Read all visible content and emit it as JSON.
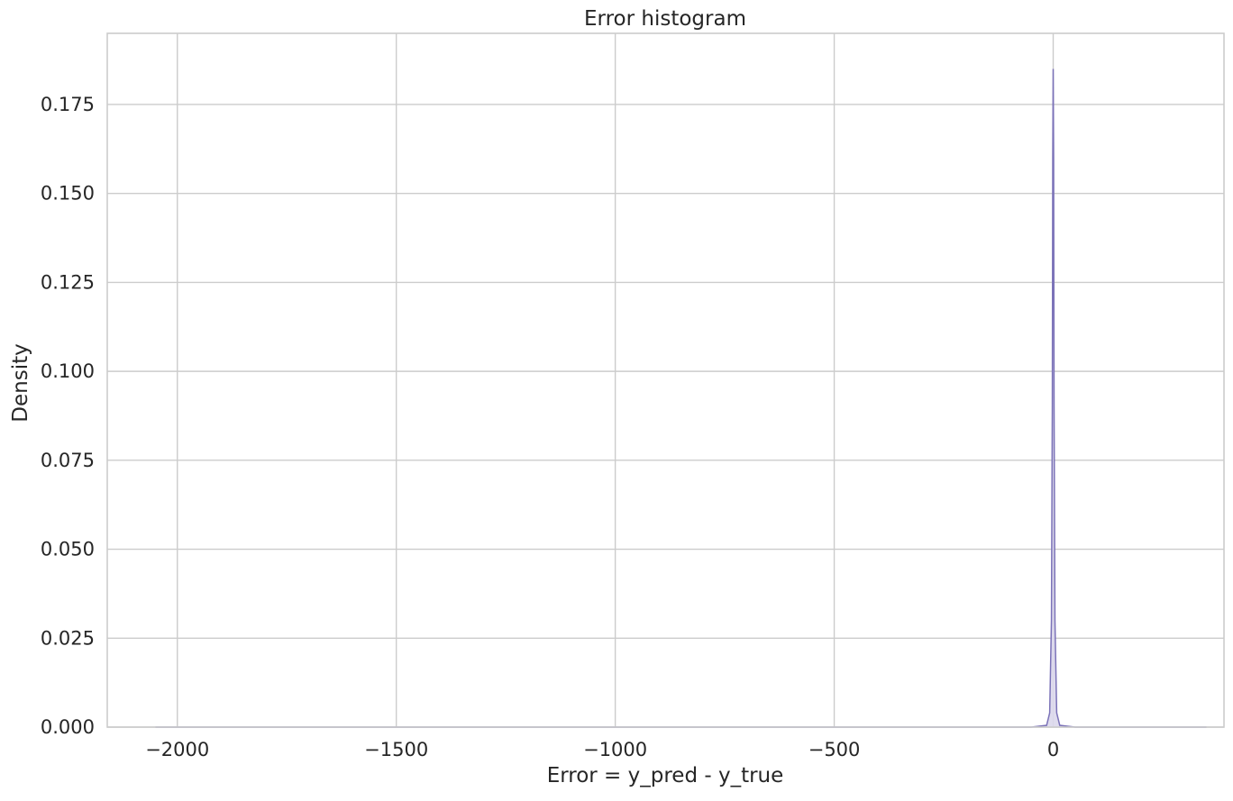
{
  "chart_data": {
    "type": "area",
    "title": "Error histogram",
    "xlabel": "Error = y_pred - y_true",
    "ylabel": "Density",
    "xlim": [
      -2160,
      390
    ],
    "ylim": [
      0,
      0.195
    ],
    "x_ticks": [
      -2000,
      -1500,
      -1000,
      -500,
      0
    ],
    "x_tick_labels": [
      "−2000",
      "−1500",
      "−1000",
      "−500",
      "0"
    ],
    "y_ticks": [
      0,
      0.025,
      0.05,
      0.075,
      0.1,
      0.125,
      0.15,
      0.175
    ],
    "y_tick_labels": [
      "0.000",
      "0.025",
      "0.050",
      "0.075",
      "0.100",
      "0.125",
      "0.150",
      "0.175"
    ],
    "grid": true,
    "legend": "none",
    "series": [
      {
        "x": [
          -2050,
          -500,
          -50,
          -15,
          -8,
          -4,
          -2,
          -1,
          0,
          1,
          2,
          4,
          8,
          15,
          50,
          350
        ],
        "y": [
          0,
          0,
          0,
          0.0005,
          0.004,
          0.03,
          0.09,
          0.16,
          0.185,
          0.16,
          0.09,
          0.03,
          0.004,
          0.0005,
          0,
          0
        ],
        "color": "#7b72b8",
        "fill": "#dcd8ec"
      }
    ]
  }
}
